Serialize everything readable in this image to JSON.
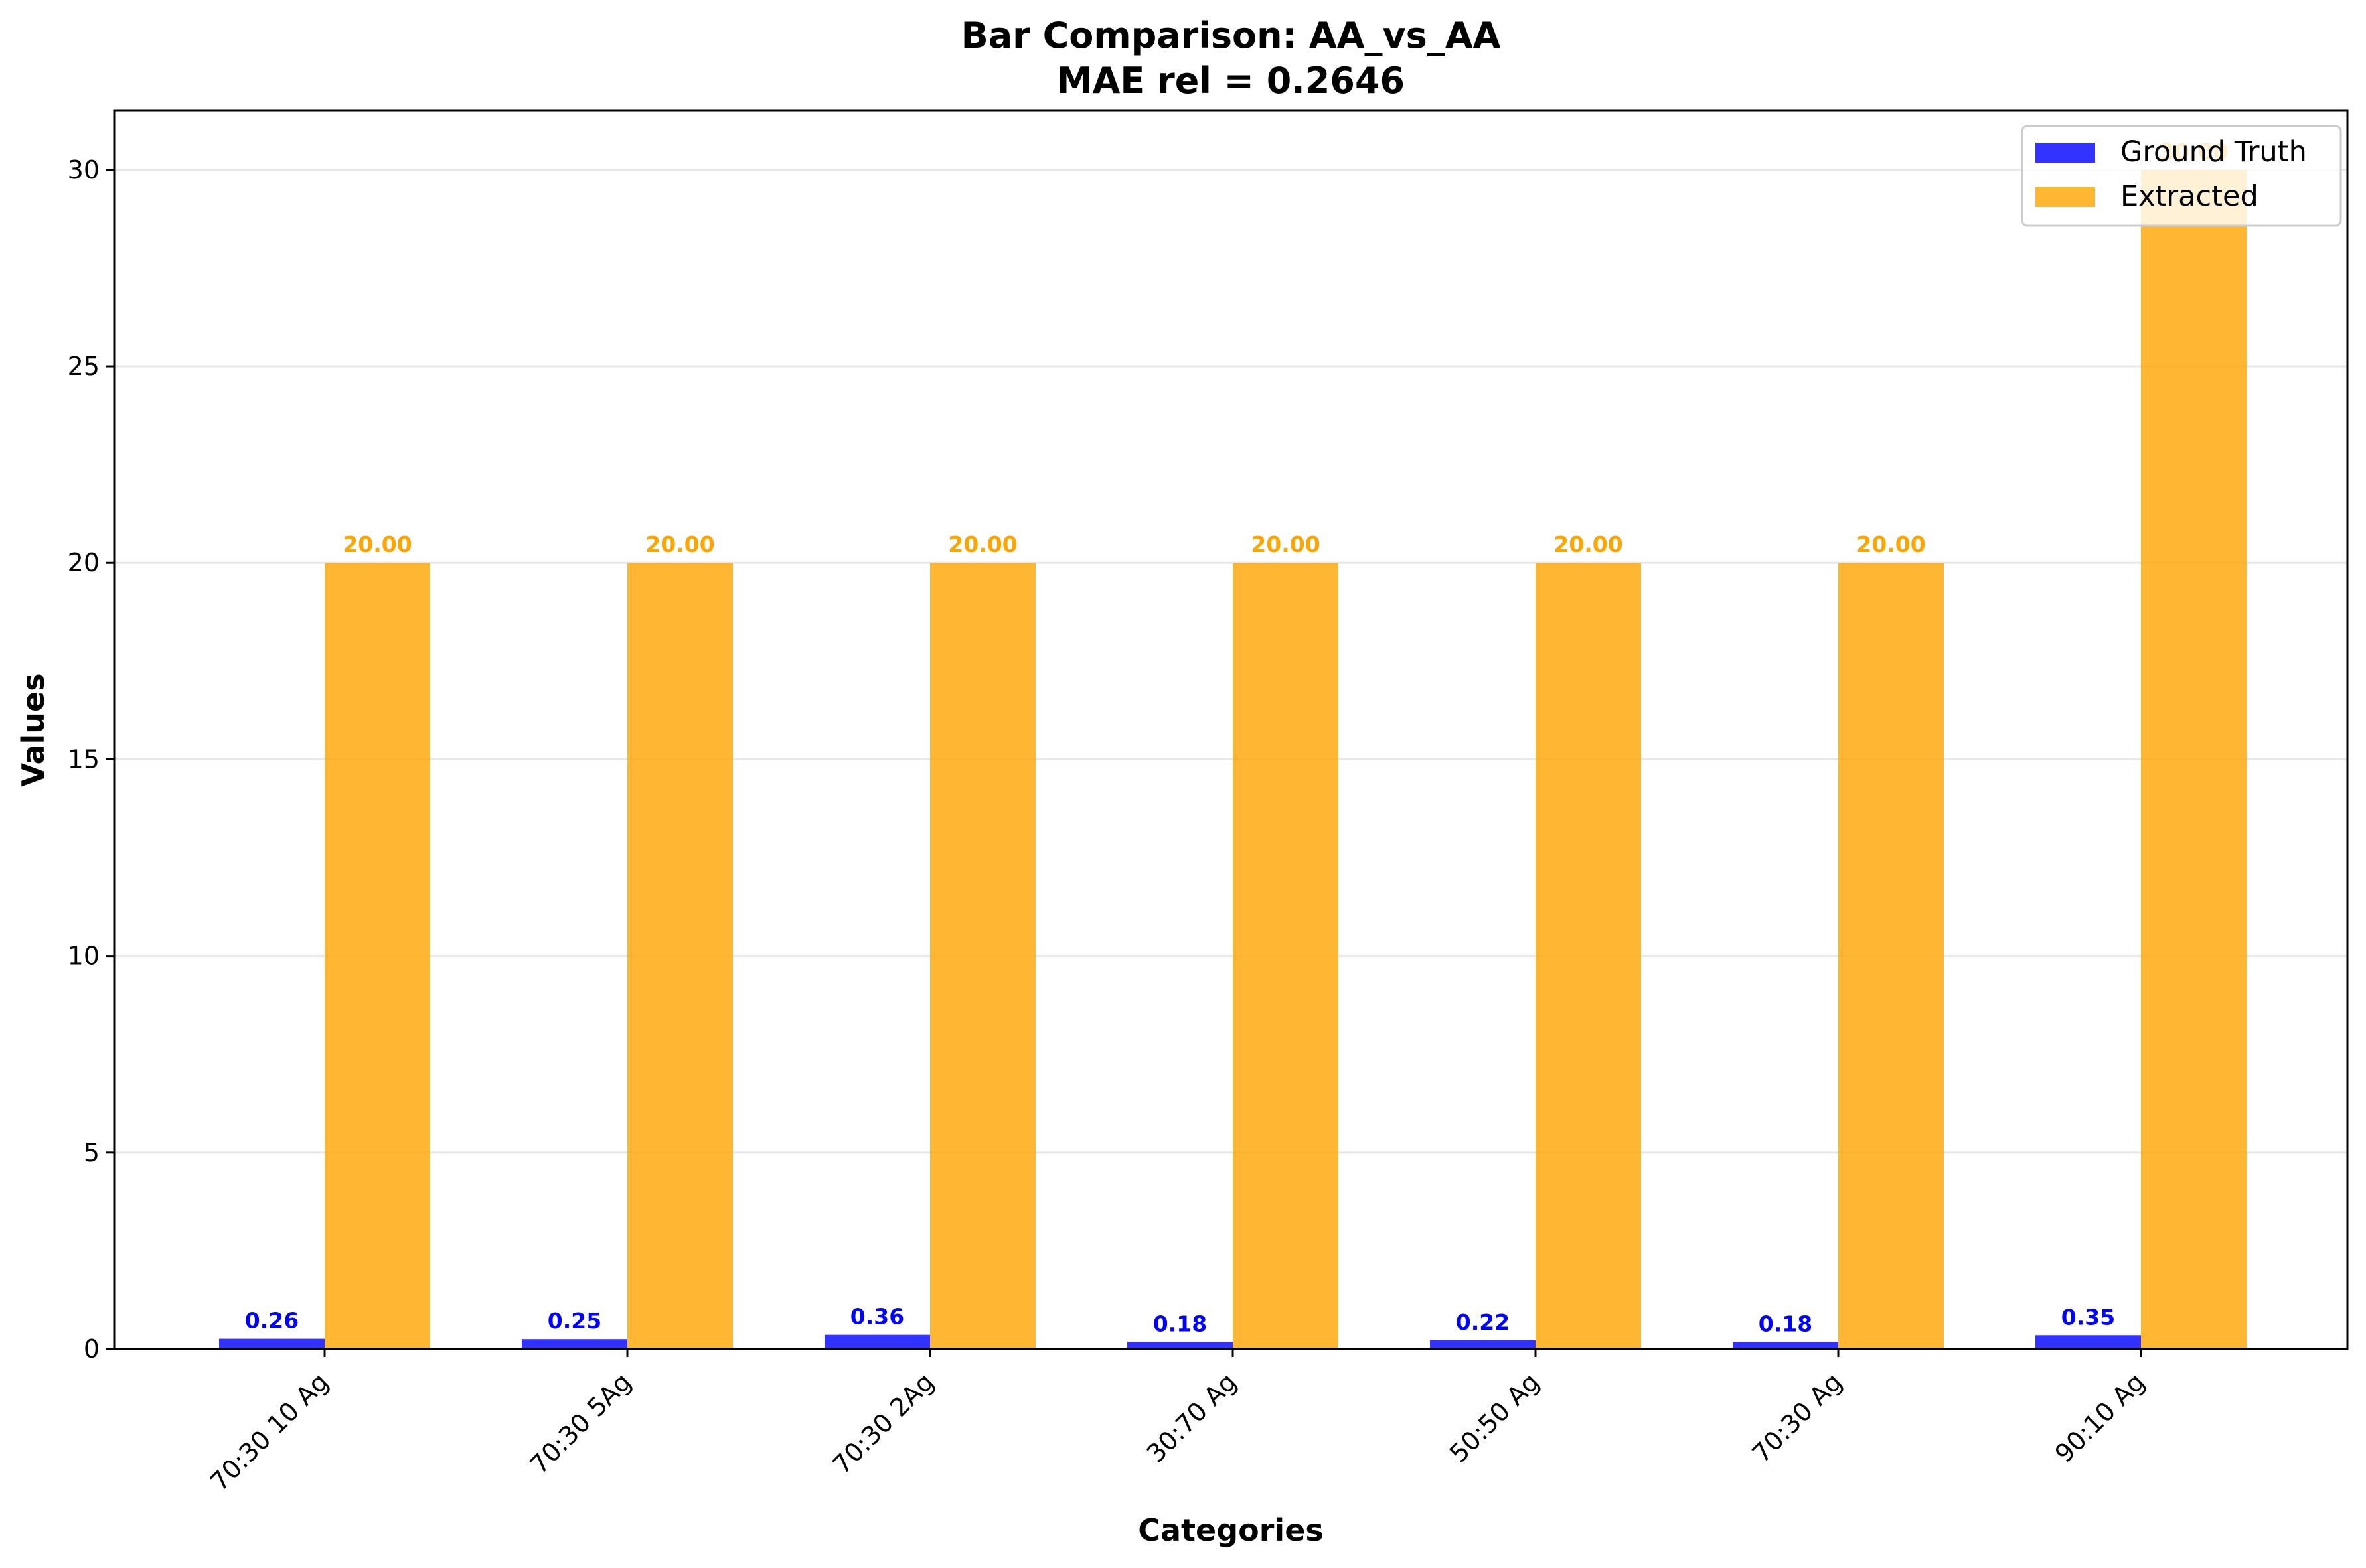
{
  "chart_data": {
    "type": "bar",
    "title": "Bar Comparison: AA_vs_AA",
    "subtitle": "MAE rel = 0.2646",
    "xlabel": "Categories",
    "ylabel": "Values",
    "categories": [
      "70:30 10 Ag",
      "70:30 5Ag",
      "70:30 2Ag",
      "30:70 Ag",
      "50:50 Ag",
      "70:30 Ag",
      "90:10 Ag"
    ],
    "series": [
      {
        "name": "Ground Truth",
        "color": "#0000ff",
        "values": [
          0.26,
          0.25,
          0.36,
          0.18,
          0.22,
          0.18,
          0.35
        ],
        "labels": [
          "0.26",
          "0.25",
          "0.36",
          "0.18",
          "0.22",
          "0.18",
          "0.35"
        ]
      },
      {
        "name": "Extracted",
        "color": "#ffa500",
        "values": [
          20,
          20,
          20,
          20,
          20,
          20,
          30
        ],
        "labels": [
          "20.00",
          "20.00",
          "20.00",
          "20.00",
          "20.00",
          "20.00",
          "30.00"
        ]
      }
    ],
    "ylim": [
      0,
      31.5
    ],
    "yticks": [
      0,
      5,
      10,
      15,
      20,
      25,
      30
    ],
    "grid": true,
    "legend_position": "top-right"
  }
}
